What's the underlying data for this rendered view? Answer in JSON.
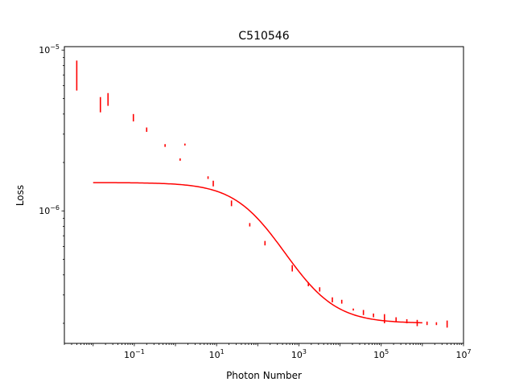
{
  "chart_data": {
    "type": "scatter",
    "title": "C510546",
    "xlabel": "Photon Number",
    "ylabel": "Loss",
    "xscale": "log",
    "yscale": "log",
    "xlim": [
      0.002,
      10000000
    ],
    "ylim": [
      1.5e-07,
      1.05e-05
    ],
    "grid": false,
    "color": "#ff0000",
    "x_ticks": [
      {
        "value": 0.1,
        "base": "10",
        "exp": "−1"
      },
      {
        "value": 10,
        "base": "10",
        "exp": "1"
      },
      {
        "value": 1000,
        "base": "10",
        "exp": "3"
      },
      {
        "value": 100000,
        "base": "10",
        "exp": "5"
      },
      {
        "value": 10000000,
        "base": "10",
        "exp": "7"
      }
    ],
    "y_ticks": [
      {
        "value": 1e-06,
        "base": "10",
        "exp": "−6"
      },
      {
        "value": 1e-05,
        "base": "10",
        "exp": "−5"
      }
    ],
    "series": [
      {
        "kind": "errorbar",
        "points": [
          {
            "x": 0.004,
            "y_low": 5.6e-06,
            "y_high": 8.6e-06
          },
          {
            "x": 0.015,
            "y_low": 4.1e-06,
            "y_high": 5.1e-06
          },
          {
            "x": 0.023,
            "y_low": 4.5e-06,
            "y_high": 5.4e-06
          },
          {
            "x": 0.095,
            "y_low": 3.6e-06,
            "y_high": 4e-06
          },
          {
            "x": 0.2,
            "y_low": 3.1e-06,
            "y_high": 3.3e-06
          },
          {
            "x": 0.56,
            "y_low": 2.5e-06,
            "y_high": 2.6e-06
          },
          {
            "x": 1.3,
            "y_low": 2.05e-06,
            "y_high": 2.12e-06
          },
          {
            "x": 1.7,
            "y_low": 2.55e-06,
            "y_high": 2.62e-06
          },
          {
            "x": 6.2,
            "y_low": 1.58e-06,
            "y_high": 1.64e-06
          },
          {
            "x": 8.3,
            "y_low": 1.42e-06,
            "y_high": 1.54e-06
          },
          {
            "x": 23,
            "y_low": 1.07e-06,
            "y_high": 1.16e-06
          },
          {
            "x": 64,
            "y_low": 8e-07,
            "y_high": 8.4e-07
          },
          {
            "x": 150,
            "y_low": 6.1e-07,
            "y_high": 6.5e-07
          },
          {
            "x": 690,
            "y_low": 4.2e-07,
            "y_high": 4.6e-07
          },
          {
            "x": 1700,
            "y_low": 3.4e-07,
            "y_high": 3.6e-07
          },
          {
            "x": 3200,
            "y_low": 3.15e-07,
            "y_high": 3.35e-07
          },
          {
            "x": 6500,
            "y_low": 2.7e-07,
            "y_high": 2.9e-07
          },
          {
            "x": 11000,
            "y_low": 2.65e-07,
            "y_high": 2.8e-07
          },
          {
            "x": 21000,
            "y_low": 2.4e-07,
            "y_high": 2.47e-07
          },
          {
            "x": 37000,
            "y_low": 2.25e-07,
            "y_high": 2.42e-07
          },
          {
            "x": 65000,
            "y_low": 2.18e-07,
            "y_high": 2.3e-07
          },
          {
            "x": 120000,
            "y_low": 2e-07,
            "y_high": 2.28e-07
          },
          {
            "x": 230000,
            "y_low": 2.05e-07,
            "y_high": 2.18e-07
          },
          {
            "x": 420000,
            "y_low": 2e-07,
            "y_high": 2.12e-07
          },
          {
            "x": 750000,
            "y_low": 1.92e-07,
            "y_high": 2.1e-07
          },
          {
            "x": 1300000,
            "y_low": 1.95e-07,
            "y_high": 2.05e-07
          },
          {
            "x": 2200000,
            "y_low": 1.95e-07,
            "y_high": 2.03e-07
          },
          {
            "x": 4000000,
            "y_low": 1.88e-07,
            "y_high": 2.08e-07
          }
        ]
      },
      {
        "kind": "line",
        "model": {
          "y_min": 2e-07,
          "y_max": 1.5e-06,
          "x0": 120,
          "slope": 0.75
        },
        "x_range": [
          0.01,
          1000000
        ]
      }
    ]
  }
}
